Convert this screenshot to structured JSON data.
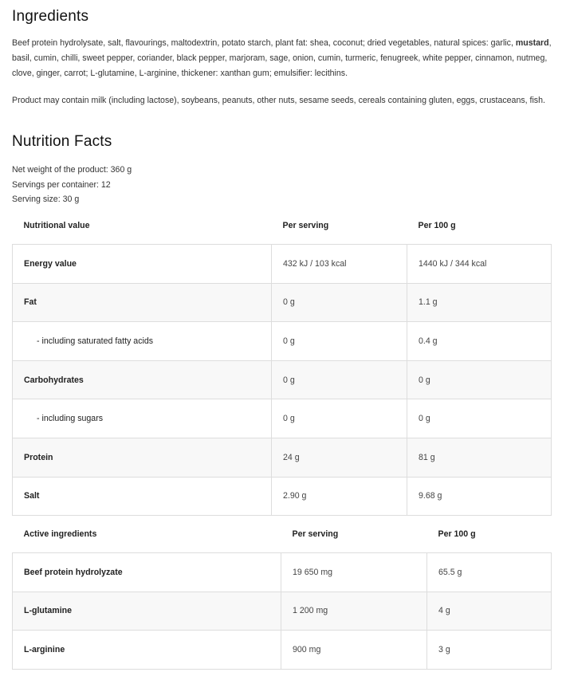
{
  "ingredients": {
    "title": "Ingredients",
    "text_before": "Beef protein hydrolysate, salt, flavourings, maltodextrin, potato starch, plant fat: shea, coconut; dried vegetables, natural spices: garlic, ",
    "allergen": "mustard",
    "text_after": ", basil, cumin, chilli, sweet pepper, coriander, black pepper, marjoram, sage, onion, cumin, turmeric, fenugreek, white pepper, cinnamon, nutmeg, clove, ginger, carrot; L-glutamine, L-arginine, thickener: xanthan gum; emulsifier: lecithins.",
    "warning": "Product may contain milk (including lactose), soybeans, peanuts, other nuts, sesame seeds, cereals containing gluten, eggs, crustaceans, fish."
  },
  "nutrition": {
    "title": "Nutrition Facts",
    "net_weight": "Net weight of the product: 360 g",
    "servings": "Servings per container: 12",
    "serving_size": "Serving size: 30 g",
    "headers": [
      "Nutritional value",
      "Per serving",
      "Per 100 g"
    ],
    "rows": [
      {
        "name": "Energy value",
        "per_serving": "432 kJ / 103 kcal",
        "per_100g": "1440 kJ / 344 kcal",
        "sub": false
      },
      {
        "name": "Fat",
        "per_serving": "0 g",
        "per_100g": "1.1 g",
        "sub": false
      },
      {
        "name": "- including saturated fatty acids",
        "per_serving": "0 g",
        "per_100g": "0.4 g",
        "sub": true
      },
      {
        "name": "Carbohydrates",
        "per_serving": "0 g",
        "per_100g": "0 g",
        "sub": false
      },
      {
        "name": "- including sugars",
        "per_serving": "0 g",
        "per_100g": "0 g",
        "sub": true
      },
      {
        "name": "Protein",
        "per_serving": "24 g",
        "per_100g": "81 g",
        "sub": false
      },
      {
        "name": "Salt",
        "per_serving": "2.90 g",
        "per_100g": "9.68 g",
        "sub": false
      }
    ]
  },
  "active": {
    "headers": [
      "Active ingredients",
      "Per serving",
      "Per 100 g"
    ],
    "rows": [
      {
        "name": "Beef protein hydrolyzate",
        "per_serving": "19 650 mg",
        "per_100g": "65.5 g",
        "sub": false
      },
      {
        "name": "L-glutamine",
        "per_serving": "1 200 mg",
        "per_100g": "4 g",
        "sub": false
      },
      {
        "name": "L-arginine",
        "per_serving": "900 mg",
        "per_100g": "3 g",
        "sub": false
      }
    ]
  }
}
